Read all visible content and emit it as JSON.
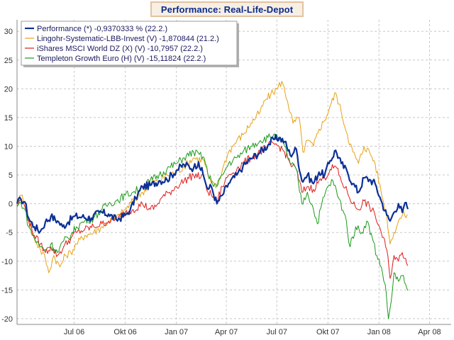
{
  "chart_data": {
    "type": "line",
    "title": "Performance: Real-Life-Depot",
    "xlabel": "",
    "ylabel": "",
    "ylim": [
      -21,
      32
    ],
    "yticks": [
      30,
      25,
      20,
      15,
      10,
      5,
      0,
      -5,
      -10,
      -15,
      -20
    ],
    "xlim": [
      "2006-03-20",
      "2008-05-10"
    ],
    "xticks": [
      {
        "date": "2006-07-01",
        "label": "Jul 06"
      },
      {
        "date": "2006-10-01",
        "label": "Okt 06"
      },
      {
        "date": "2007-01-01",
        "label": "Jan 07"
      },
      {
        "date": "2007-04-01",
        "label": "Apr 07"
      },
      {
        "date": "2007-07-01",
        "label": "Jul 07"
      },
      {
        "date": "2007-10-01",
        "label": "Okt 07"
      },
      {
        "date": "2008-01-01",
        "label": "Jan 08"
      },
      {
        "date": "2008-04-01",
        "label": "Apr 08"
      }
    ],
    "grid": true,
    "legend_position": "top-left",
    "series": [
      {
        "name": "Performance (*) -0,9370333 % (22.2.)",
        "color": "#0c3096",
        "points": [
          [
            "2006-03-20",
            0
          ],
          [
            "2006-03-27",
            0.8
          ],
          [
            "2006-04-03",
            0.3
          ],
          [
            "2006-04-10",
            -2.5
          ],
          [
            "2006-04-20",
            -4
          ],
          [
            "2006-05-01",
            -4.8
          ],
          [
            "2006-05-10",
            -3.2
          ],
          [
            "2006-05-20",
            -2.2
          ],
          [
            "2006-06-01",
            -3
          ],
          [
            "2006-06-10",
            -4
          ],
          [
            "2006-06-20",
            -3.2
          ],
          [
            "2006-07-01",
            -2.2
          ],
          [
            "2006-07-15",
            -2.3
          ],
          [
            "2006-08-01",
            -2.5
          ],
          [
            "2006-08-15",
            -1.5
          ],
          [
            "2006-09-01",
            -1.8
          ],
          [
            "2006-09-15",
            -2.8
          ],
          [
            "2006-10-01",
            -2
          ],
          [
            "2006-10-10",
            -1
          ],
          [
            "2006-10-20",
            1
          ],
          [
            "2006-11-01",
            3
          ],
          [
            "2006-11-15",
            3.2
          ],
          [
            "2006-12-01",
            4
          ],
          [
            "2006-12-15",
            4.2
          ],
          [
            "2007-01-01",
            5.8
          ],
          [
            "2007-01-15",
            6.8
          ],
          [
            "2007-02-01",
            6.2
          ],
          [
            "2007-02-10",
            7.3
          ],
          [
            "2007-02-20",
            4.5
          ],
          [
            "2007-02-27",
            2.5
          ],
          [
            "2007-03-05",
            3
          ],
          [
            "2007-03-15",
            0
          ],
          [
            "2007-03-25",
            1.5
          ],
          [
            "2007-04-05",
            3.5
          ],
          [
            "2007-04-20",
            5
          ],
          [
            "2007-05-01",
            6.5
          ],
          [
            "2007-05-15",
            7.8
          ],
          [
            "2007-06-01",
            9
          ],
          [
            "2007-06-15",
            10.2
          ],
          [
            "2007-06-25",
            11.2
          ],
          [
            "2007-07-05",
            11.5
          ],
          [
            "2007-07-15",
            10.8
          ],
          [
            "2007-07-25",
            8.5
          ],
          [
            "2007-08-05",
            9.5
          ],
          [
            "2007-08-15",
            4
          ],
          [
            "2007-08-25",
            5
          ],
          [
            "2007-09-05",
            3.5
          ],
          [
            "2007-09-15",
            5.5
          ],
          [
            "2007-09-25",
            5
          ],
          [
            "2007-10-05",
            7.5
          ],
          [
            "2007-10-15",
            9.3
          ],
          [
            "2007-10-25",
            7
          ],
          [
            "2007-11-05",
            5.5
          ],
          [
            "2007-11-15",
            3.5
          ],
          [
            "2007-11-25",
            2
          ],
          [
            "2007-12-05",
            4.5
          ],
          [
            "2007-12-15",
            4.2
          ],
          [
            "2007-12-25",
            3.5
          ],
          [
            "2008-01-05",
            0.5
          ],
          [
            "2008-01-15",
            -2
          ],
          [
            "2008-01-21",
            -3
          ],
          [
            "2008-01-28",
            -1.5
          ],
          [
            "2008-02-05",
            0
          ],
          [
            "2008-02-12",
            -1.5
          ],
          [
            "2008-02-19",
            0.2
          ],
          [
            "2008-02-22",
            -0.94
          ]
        ]
      },
      {
        "name": "Lingohr-Systematic-LBB-Invest (V) -1,870844 (21.2.)",
        "color": "#e8a114",
        "points": [
          [
            "2006-03-20",
            -0.2
          ],
          [
            "2006-03-27",
            1.5
          ],
          [
            "2006-04-03",
            0.5
          ],
          [
            "2006-04-10",
            -3
          ],
          [
            "2006-04-20",
            -6
          ],
          [
            "2006-05-01",
            -8
          ],
          [
            "2006-05-10",
            -9.5
          ],
          [
            "2006-05-16",
            -12
          ],
          [
            "2006-05-25",
            -9
          ],
          [
            "2006-06-05",
            -11
          ],
          [
            "2006-06-15",
            -9
          ],
          [
            "2006-06-25",
            -8.5
          ],
          [
            "2006-07-05",
            -7
          ],
          [
            "2006-07-20",
            -5.5
          ],
          [
            "2006-08-05",
            -5
          ],
          [
            "2006-08-20",
            -4
          ],
          [
            "2006-09-01",
            -3
          ],
          [
            "2006-09-15",
            -2.5
          ],
          [
            "2006-10-01",
            -1
          ],
          [
            "2006-10-15",
            0.5
          ],
          [
            "2006-11-01",
            2
          ],
          [
            "2006-11-15",
            3.5
          ],
          [
            "2006-12-01",
            4
          ],
          [
            "2006-12-15",
            5
          ],
          [
            "2007-01-01",
            5.5
          ],
          [
            "2007-01-15",
            6.5
          ],
          [
            "2007-02-01",
            8
          ],
          [
            "2007-02-20",
            7.5
          ],
          [
            "2007-02-27",
            5
          ],
          [
            "2007-03-05",
            3.5
          ],
          [
            "2007-03-15",
            3
          ],
          [
            "2007-03-25",
            6
          ],
          [
            "2007-04-05",
            9
          ],
          [
            "2007-04-20",
            11
          ],
          [
            "2007-05-01",
            12
          ],
          [
            "2007-05-15",
            14
          ],
          [
            "2007-06-01",
            16
          ],
          [
            "2007-06-10",
            18
          ],
          [
            "2007-06-20",
            19
          ],
          [
            "2007-07-01",
            20
          ],
          [
            "2007-07-10",
            21.3
          ],
          [
            "2007-07-20",
            18
          ],
          [
            "2007-07-30",
            14
          ],
          [
            "2007-08-10",
            15
          ],
          [
            "2007-08-17",
            9
          ],
          [
            "2007-08-25",
            11
          ],
          [
            "2007-09-05",
            10
          ],
          [
            "2007-09-15",
            13
          ],
          [
            "2007-09-25",
            14.5
          ],
          [
            "2007-10-05",
            17
          ],
          [
            "2007-10-15",
            19.3
          ],
          [
            "2007-10-25",
            16
          ],
          [
            "2007-11-05",
            12
          ],
          [
            "2007-11-15",
            9
          ],
          [
            "2007-11-25",
            7
          ],
          [
            "2007-12-05",
            10
          ],
          [
            "2007-12-15",
            9
          ],
          [
            "2007-12-25",
            7
          ],
          [
            "2008-01-05",
            2
          ],
          [
            "2008-01-15",
            -2
          ],
          [
            "2008-01-21",
            -7
          ],
          [
            "2008-01-28",
            -5
          ],
          [
            "2008-02-05",
            -3
          ],
          [
            "2008-02-12",
            -2
          ],
          [
            "2008-02-21",
            -1.87
          ]
        ]
      },
      {
        "name": "iShares MSCI World DZ (X) (V) -10,7957 (22.2.)",
        "color": "#e01a1a",
        "points": [
          [
            "2006-03-20",
            -0.3
          ],
          [
            "2006-03-27",
            0.6
          ],
          [
            "2006-04-03",
            -0.5
          ],
          [
            "2006-04-10",
            -3
          ],
          [
            "2006-04-20",
            -5.5
          ],
          [
            "2006-05-01",
            -7
          ],
          [
            "2006-05-10",
            -8.5
          ],
          [
            "2006-05-20",
            -7.5
          ],
          [
            "2006-06-01",
            -9
          ],
          [
            "2006-06-12",
            -7.5
          ],
          [
            "2006-06-25",
            -6
          ],
          [
            "2006-07-05",
            -5
          ],
          [
            "2006-07-20",
            -4.5
          ],
          [
            "2006-08-05",
            -4
          ],
          [
            "2006-08-20",
            -3.5
          ],
          [
            "2006-09-01",
            -3
          ],
          [
            "2006-09-15",
            -2.8
          ],
          [
            "2006-10-01",
            -1.5
          ],
          [
            "2006-10-15",
            -1
          ],
          [
            "2006-11-01",
            0
          ],
          [
            "2006-11-15",
            -1
          ],
          [
            "2006-11-25",
            -0.5
          ],
          [
            "2006-12-05",
            1
          ],
          [
            "2006-12-20",
            2
          ],
          [
            "2007-01-01",
            3
          ],
          [
            "2007-01-15",
            4
          ],
          [
            "2007-02-01",
            5
          ],
          [
            "2007-02-20",
            4.5
          ],
          [
            "2007-02-27",
            2
          ],
          [
            "2007-03-05",
            1.5
          ],
          [
            "2007-03-15",
            0.5
          ],
          [
            "2007-03-25",
            3
          ],
          [
            "2007-04-05",
            5
          ],
          [
            "2007-04-20",
            6
          ],
          [
            "2007-05-01",
            7
          ],
          [
            "2007-05-15",
            8
          ],
          [
            "2007-06-01",
            9
          ],
          [
            "2007-06-15",
            10
          ],
          [
            "2007-06-25",
            10.5
          ],
          [
            "2007-07-05",
            10
          ],
          [
            "2007-07-15",
            9
          ],
          [
            "2007-07-25",
            7
          ],
          [
            "2007-08-05",
            6
          ],
          [
            "2007-08-15",
            2
          ],
          [
            "2007-08-25",
            3
          ],
          [
            "2007-09-05",
            2.5
          ],
          [
            "2007-09-15",
            4
          ],
          [
            "2007-09-25",
            4.5
          ],
          [
            "2007-10-05",
            6
          ],
          [
            "2007-10-15",
            6.5
          ],
          [
            "2007-10-25",
            4
          ],
          [
            "2007-11-05",
            2
          ],
          [
            "2007-11-15",
            0
          ],
          [
            "2007-11-25",
            -1
          ],
          [
            "2007-12-05",
            0.5
          ],
          [
            "2007-12-15",
            -0.5
          ],
          [
            "2007-12-25",
            -2
          ],
          [
            "2008-01-05",
            -5
          ],
          [
            "2008-01-15",
            -8
          ],
          [
            "2008-01-21",
            -13
          ],
          [
            "2008-01-28",
            -9
          ],
          [
            "2008-02-05",
            -10
          ],
          [
            "2008-02-12",
            -8.5
          ],
          [
            "2008-02-18",
            -9.5
          ],
          [
            "2008-02-22",
            -10.8
          ]
        ]
      },
      {
        "name": "Templeton Growth Euro (H) (V) -15,11824 (22.2.)",
        "color": "#1a9a1a",
        "points": [
          [
            "2006-03-20",
            -0.5
          ],
          [
            "2006-03-27",
            0.2
          ],
          [
            "2006-04-03",
            -1
          ],
          [
            "2006-04-10",
            -4
          ],
          [
            "2006-04-20",
            -6
          ],
          [
            "2006-05-01",
            -7.5
          ],
          [
            "2006-05-10",
            -8
          ],
          [
            "2006-05-20",
            -7
          ],
          [
            "2006-06-01",
            -8.5
          ],
          [
            "2006-06-12",
            -6.5
          ],
          [
            "2006-06-25",
            -5.5
          ],
          [
            "2006-07-05",
            -4
          ],
          [
            "2006-07-20",
            -3
          ],
          [
            "2006-08-05",
            -2.5
          ],
          [
            "2006-08-20",
            -1
          ],
          [
            "2006-09-01",
            0
          ],
          [
            "2006-09-15",
            0.5
          ],
          [
            "2006-10-01",
            1.5
          ],
          [
            "2006-10-15",
            2
          ],
          [
            "2006-11-01",
            3
          ],
          [
            "2006-11-15",
            4
          ],
          [
            "2006-12-01",
            5
          ],
          [
            "2006-12-15",
            6
          ],
          [
            "2007-01-01",
            7
          ],
          [
            "2007-01-15",
            8
          ],
          [
            "2007-02-01",
            9
          ],
          [
            "2007-02-20",
            8
          ],
          [
            "2007-02-27",
            5
          ],
          [
            "2007-03-05",
            4
          ],
          [
            "2007-03-15",
            3
          ],
          [
            "2007-03-25",
            5
          ],
          [
            "2007-04-05",
            7
          ],
          [
            "2007-04-20",
            8
          ],
          [
            "2007-05-01",
            9
          ],
          [
            "2007-05-15",
            10
          ],
          [
            "2007-06-01",
            11
          ],
          [
            "2007-06-15",
            11.5
          ],
          [
            "2007-06-25",
            12
          ],
          [
            "2007-07-05",
            11
          ],
          [
            "2007-07-15",
            10
          ],
          [
            "2007-07-25",
            7
          ],
          [
            "2007-08-05",
            6
          ],
          [
            "2007-08-15",
            0
          ],
          [
            "2007-08-25",
            2
          ],
          [
            "2007-09-05",
            -1
          ],
          [
            "2007-09-12",
            -3.5
          ],
          [
            "2007-09-20",
            0
          ],
          [
            "2007-10-01",
            3
          ],
          [
            "2007-10-10",
            4
          ],
          [
            "2007-10-20",
            1
          ],
          [
            "2007-11-01",
            -2
          ],
          [
            "2007-11-10",
            -7.5
          ],
          [
            "2007-11-20",
            -4
          ],
          [
            "2007-12-01",
            -5
          ],
          [
            "2007-12-10",
            -3
          ],
          [
            "2007-12-20",
            -6
          ],
          [
            "2007-12-28",
            -9
          ],
          [
            "2008-01-05",
            -11
          ],
          [
            "2008-01-12",
            -14
          ],
          [
            "2008-01-18",
            -20
          ],
          [
            "2008-01-23",
            -17
          ],
          [
            "2008-01-28",
            -12
          ],
          [
            "2008-02-05",
            -13.5
          ],
          [
            "2008-02-12",
            -12.5
          ],
          [
            "2008-02-18",
            -14
          ],
          [
            "2008-02-22",
            -15.1
          ]
        ]
      }
    ]
  }
}
